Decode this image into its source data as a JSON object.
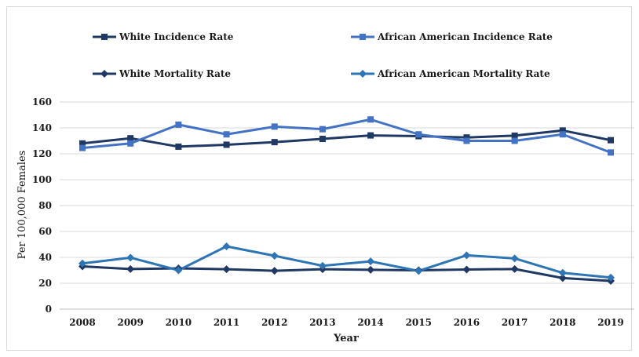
{
  "chart_data": {
    "type": "line",
    "title": "",
    "xlabel": "Year",
    "ylabel": "Per 100,000 Females",
    "ylim": [
      0,
      160
    ],
    "yticks": [
      0,
      20,
      40,
      60,
      80,
      100,
      120,
      140,
      160
    ],
    "grid": true,
    "legend_position": "top",
    "categories": [
      "2008",
      "2009",
      "2010",
      "2011",
      "2012",
      "2013",
      "2014",
      "2015",
      "2016",
      "2017",
      "2018",
      "2019"
    ],
    "series": [
      {
        "name": "White Incidence Rate",
        "color": "#1f3864",
        "marker": "square",
        "values": [
          128,
          132,
          125.5,
          127,
          129,
          131.5,
          134.2,
          133.6,
          132.6,
          134,
          138,
          130.5
        ]
      },
      {
        "name": "African American Incidence Rate",
        "color": "#4472c4",
        "marker": "square",
        "values": [
          124.5,
          128,
          142.5,
          135,
          141,
          139,
          146.5,
          135,
          130,
          130,
          135,
          121
        ]
      },
      {
        "name": "White Mortality Rate",
        "color": "#1f3864",
        "marker": "diamond",
        "values": [
          33,
          31,
          31.5,
          30.8,
          29.6,
          30.8,
          30.4,
          30,
          30.6,
          31,
          24,
          21.8
        ]
      },
      {
        "name": "African American Mortality Rate",
        "color": "#2e75b6",
        "marker": "diamond",
        "values": [
          35.3,
          39.8,
          30,
          48.5,
          41.2,
          33.5,
          36.9,
          29.5,
          41.6,
          39.2,
          28,
          24.4
        ]
      }
    ]
  }
}
